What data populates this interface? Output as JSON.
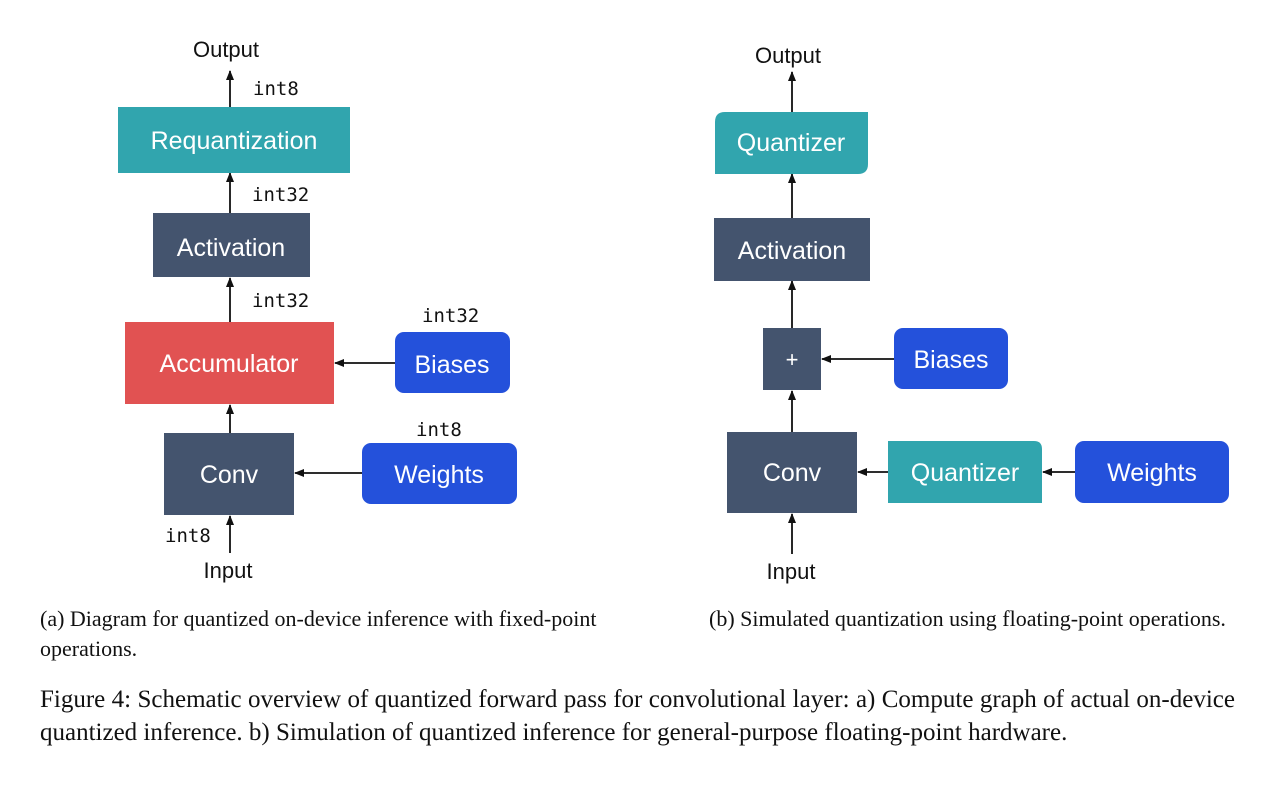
{
  "colors": {
    "teal": "#31A5AE",
    "slate": "#44546E",
    "red": "#E15252",
    "blue": "#2451DB",
    "arrow": "#111111"
  },
  "panel_a": {
    "output_label": "Output",
    "input_label": "Input",
    "requantization": "Requantization",
    "activation": "Activation",
    "accumulator": "Accumulator",
    "conv": "Conv",
    "biases": "Biases",
    "weights": "Weights",
    "dtype_output": "int8",
    "dtype_activation_out": "int32",
    "dtype_accumulator_out": "int32",
    "dtype_biases": "int32",
    "dtype_weights": "int8",
    "dtype_input": "int8"
  },
  "panel_b": {
    "output_label": "Output",
    "input_label": "Input",
    "quantizer_top": "Quantizer",
    "activation": "Activation",
    "plus": "+",
    "biases": "Biases",
    "conv": "Conv",
    "quantizer_weights": "Quantizer",
    "weights": "Weights"
  },
  "captions": {
    "sub_a": "(a) Diagram for quantized on-device inference with fixed-point operations.",
    "sub_b": "(b) Simulated quantization using floating-point operations.",
    "figure": "Figure 4: Schematic overview of quantized forward pass for convolutional layer: a) Compute graph of actual on-device quantized inference. b) Simulation of quantized inference for general-purpose floating-point hardware."
  }
}
